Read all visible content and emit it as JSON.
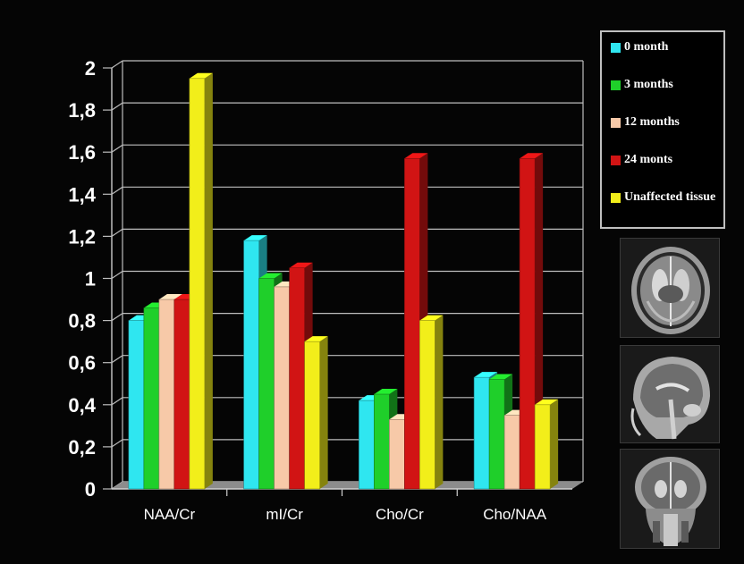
{
  "chart_data": {
    "type": "bar",
    "title": "",
    "xlabel": "",
    "ylabel": "",
    "ylim": [
      0,
      2
    ],
    "ytick_labels": [
      "0",
      "0,2",
      "0,4",
      "0,6",
      "0,8",
      "1",
      "1,2",
      "1,4",
      "1,6",
      "1,8",
      "2"
    ],
    "grid": true,
    "legend_position": "top-right",
    "categories": [
      "NAA/Cr",
      "mI/Cr",
      "Cho/Cr",
      "Cho/NAA"
    ],
    "series": [
      {
        "name": "0 month",
        "color": "#2fe6f0",
        "values": [
          0.8,
          1.18,
          0.42,
          0.53
        ]
      },
      {
        "name": "3 months",
        "color": "#1fcf2a",
        "values": [
          0.86,
          1.0,
          0.45,
          0.52
        ]
      },
      {
        "name": "12 months",
        "color": "#f7c9a8",
        "values": [
          0.9,
          0.96,
          0.33,
          0.35
        ]
      },
      {
        "name": "24 monts",
        "color": "#d11414",
        "values": [
          0.9,
          1.05,
          1.57,
          1.57
        ]
      },
      {
        "name": "Unaffected tissue",
        "color": "#f2ee1a",
        "values": [
          1.95,
          0.7,
          0.8,
          0.4
        ]
      }
    ]
  },
  "images": [
    {
      "name": "axial-brain-mri"
    },
    {
      "name": "sagittal-brain-mri"
    },
    {
      "name": "coronal-brain-mri"
    }
  ]
}
